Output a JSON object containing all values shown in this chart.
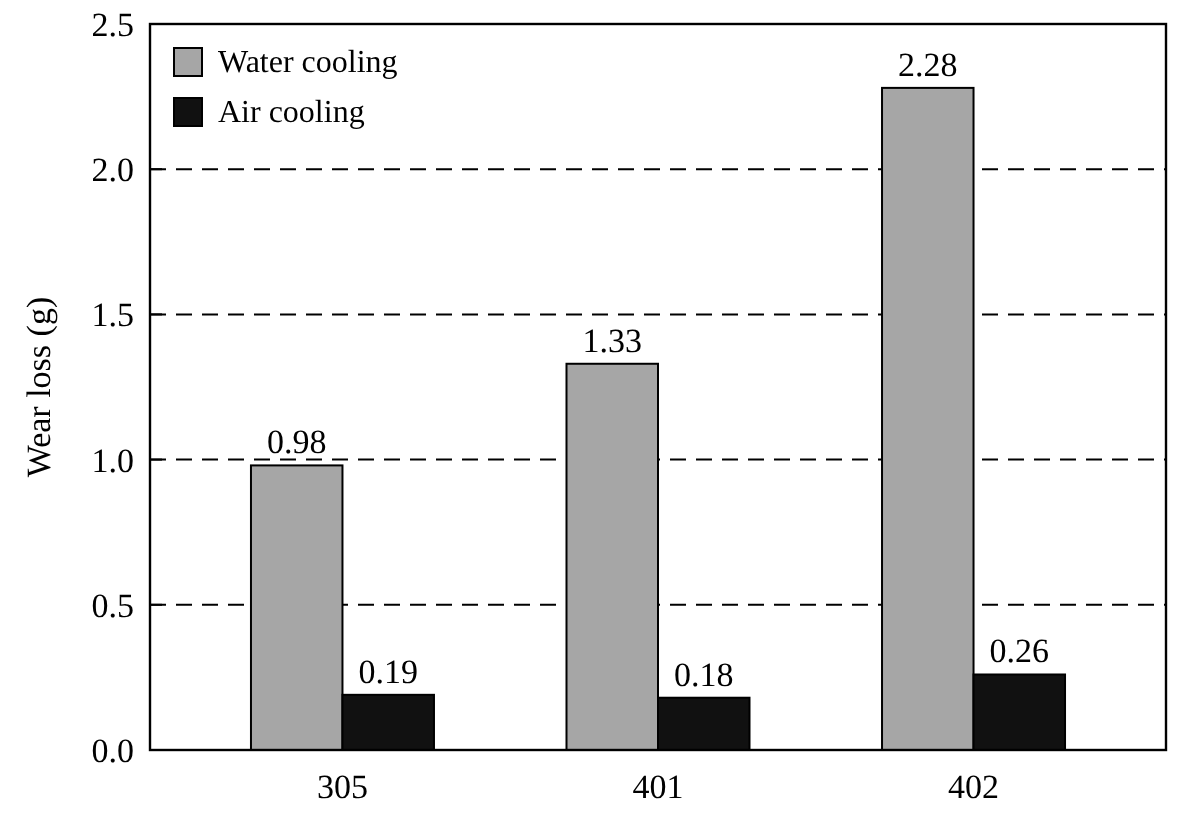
{
  "chart_data": {
    "type": "bar",
    "ylabel": "Wear loss (g)",
    "categories": [
      "305",
      "401",
      "402"
    ],
    "series": [
      {
        "name": "Water cooling",
        "color": "#a6a6a6",
        "values": [
          0.98,
          1.33,
          2.28
        ]
      },
      {
        "name": "Air cooling",
        "color": "#111111",
        "values": [
          0.19,
          0.18,
          0.26
        ]
      }
    ],
    "ylim": [
      0,
      2.5
    ],
    "yticks": [
      {
        "value": 0,
        "label": "0.0"
      },
      {
        "value": 0.5,
        "label": "0.5"
      },
      {
        "value": 1,
        "label": "1.0"
      },
      {
        "value": 1.5,
        "label": "1.5"
      },
      {
        "value": 2,
        "label": "2.0"
      },
      {
        "value": 2.5,
        "label": "2.5"
      }
    ],
    "grid": "y",
    "legend": "top left",
    "data_labels": true
  }
}
